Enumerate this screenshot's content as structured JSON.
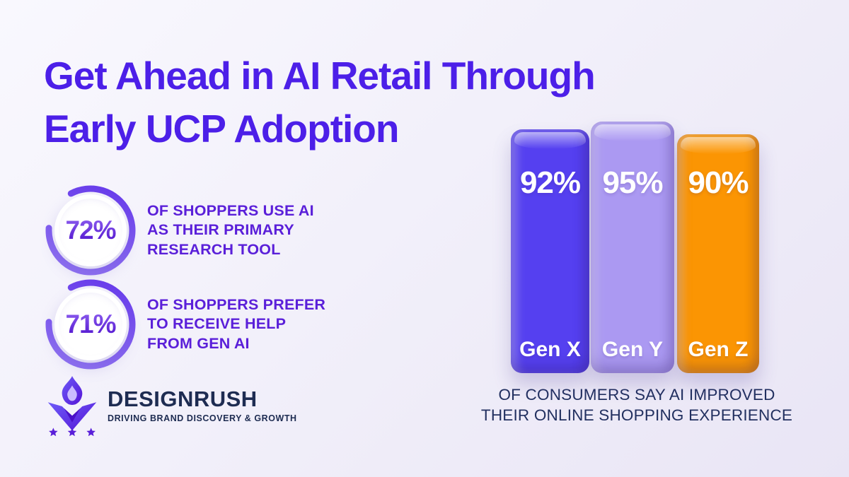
{
  "title": {
    "line1": "Get Ahead in AI Retail Through",
    "line2": "Early UCP Adoption",
    "color": "#4c1fe8"
  },
  "stats": [
    {
      "value": "72%",
      "lines": [
        "OF SHOPPERS USE AI",
        "AS THEIR PRIMARY",
        "RESEARCH TOOL"
      ]
    },
    {
      "value": "71%",
      "lines": [
        "OF SHOPPERS PREFER",
        "TO RECEIVE HELP",
        "FROM GEN AI"
      ]
    }
  ],
  "logo": {
    "brand": "DESIGNRUSH",
    "tagline": "DRIVING BRAND DISCOVERY & GROWTH",
    "text_color": "#1e2c52",
    "icon_color": "#5a22e0"
  },
  "chart_data": {
    "type": "bar",
    "categories": [
      "Gen X",
      "Gen Y",
      "Gen Z"
    ],
    "values": [
      92,
      95,
      90
    ],
    "value_labels": [
      "92%",
      "95%",
      "90%"
    ],
    "bar_colors": [
      "#5540f0",
      "#ab99f2",
      "#fb9503"
    ],
    "ylim": [
      0,
      100
    ],
    "grid": false,
    "legend": false,
    "caption_line1": "OF CONSUMERS SAY AI IMPROVED",
    "caption_line2": "THEIR ONLINE SHOPPING EXPERIENCE",
    "caption_color": "#223060"
  },
  "accent_colors": {
    "ring_light": "#9478f2",
    "ring_dark": "#6436ea",
    "background_from": "#f9f8fe",
    "background_to": "#e9e5f5"
  }
}
